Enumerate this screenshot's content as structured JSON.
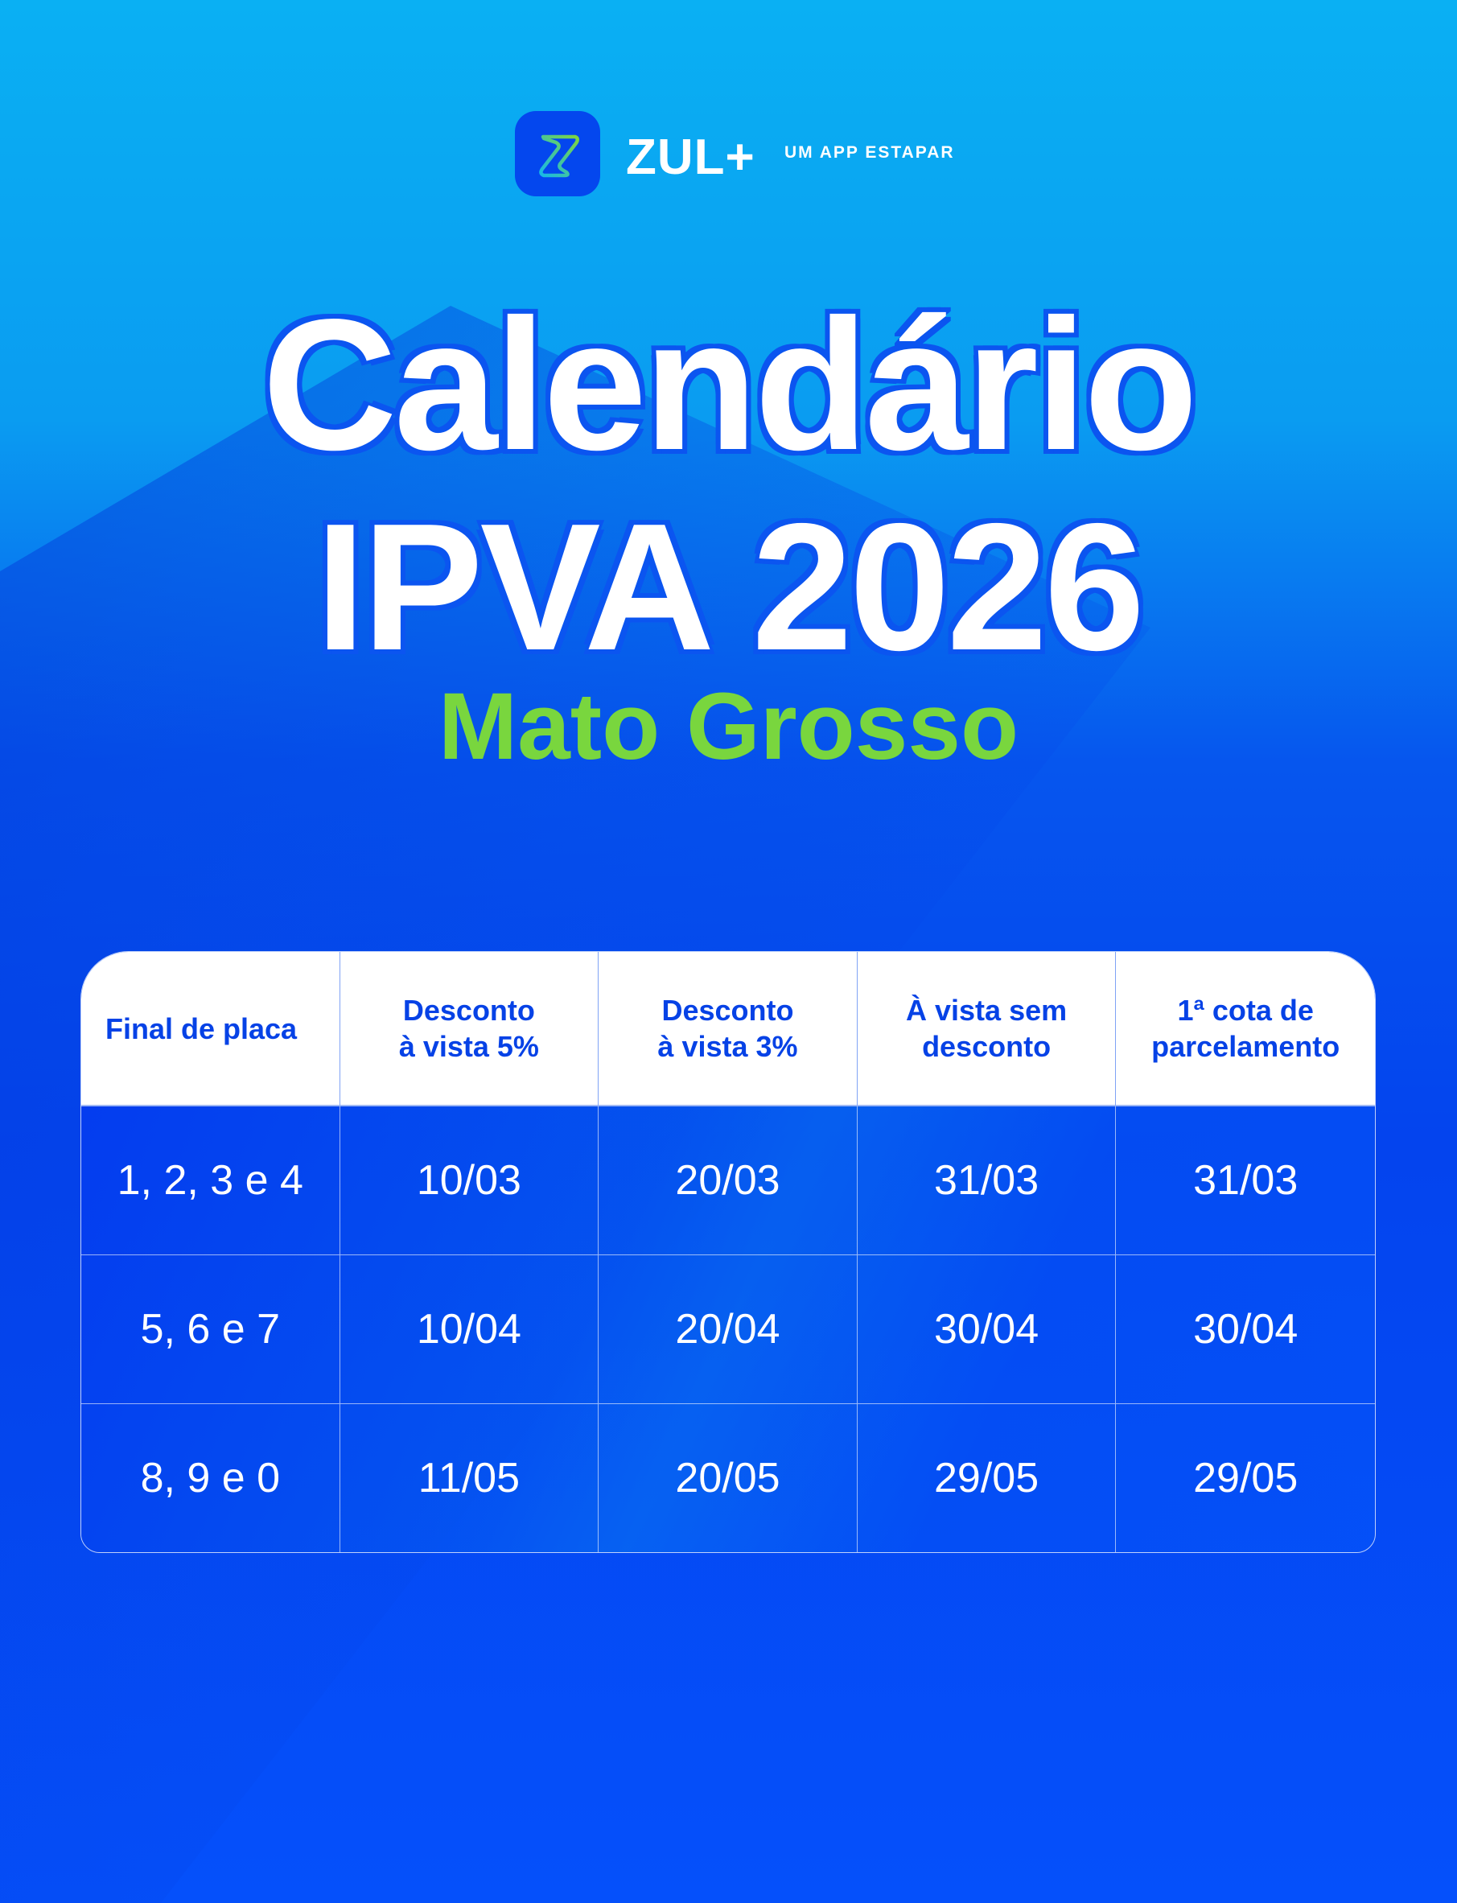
{
  "brand": {
    "name": "ZUL+",
    "tagline": "UM APP ESTAPAR",
    "icon": "z-logo-icon"
  },
  "title": {
    "line1": "Calendário",
    "line2": "IPVA 2026",
    "subtitle": "Mato Grosso"
  },
  "colors": {
    "accent_green": "#79d63e",
    "brand_blue": "#0447ee",
    "sky_blue": "#0ab0f3"
  },
  "table": {
    "headers": [
      "Final de placa",
      "Desconto\nà vista 5%",
      "Desconto\nà vista 3%",
      "À vista sem\ndesconto",
      "1ª cota de\nparcelamento"
    ],
    "rows": [
      [
        "1, 2, 3 e 4",
        "10/03",
        "20/03",
        "31/03",
        "31/03"
      ],
      [
        "5, 6 e 7",
        "10/04",
        "20/04",
        "30/04",
        "30/04"
      ],
      [
        "8, 9 e 0",
        "11/05",
        "20/05",
        "29/05",
        "29/05"
      ]
    ]
  }
}
